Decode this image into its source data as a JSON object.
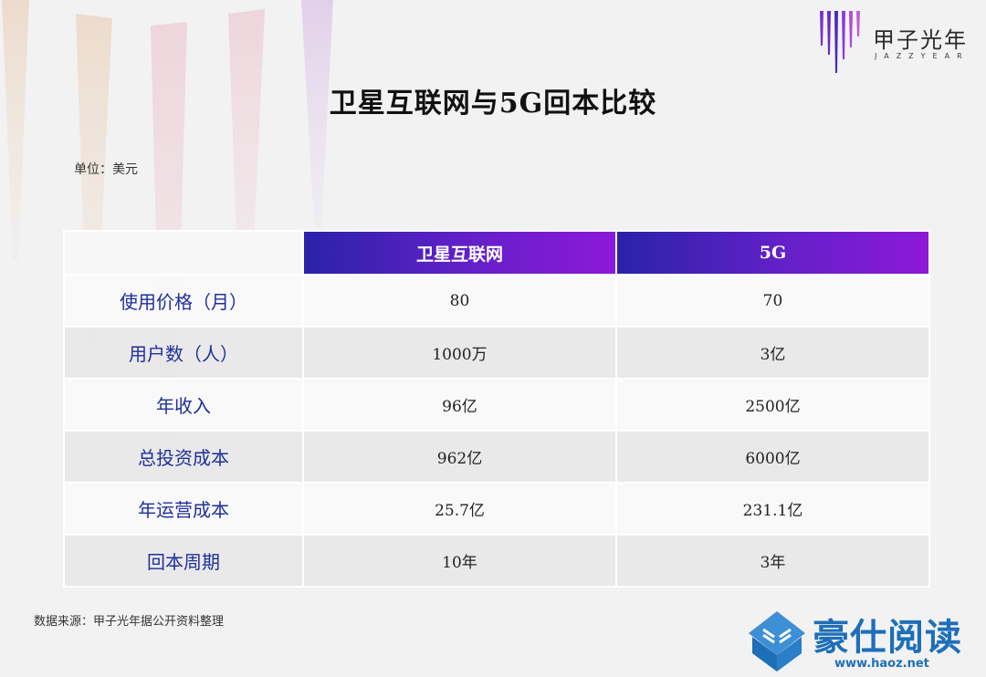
{
  "brand": {
    "name": "甲子光年",
    "sub": "JAZZYEAR"
  },
  "title": "卫星互联网与5G回本比较",
  "unit": "单位：美元",
  "table": {
    "columns": [
      "",
      "卫星互联网",
      "5G"
    ],
    "rows": [
      {
        "label": "使用价格（月）",
        "cells": [
          "80",
          "70"
        ]
      },
      {
        "label": "用户数（人）",
        "cells": [
          "1000万",
          "3亿"
        ]
      },
      {
        "label": "年收入",
        "cells": [
          "96亿",
          "2500亿"
        ]
      },
      {
        "label": "总投资成本",
        "cells": [
          "962亿",
          "6000亿"
        ]
      },
      {
        "label": "年运营成本",
        "cells": [
          "25.7亿",
          "231.1亿"
        ]
      },
      {
        "label": "回本周期",
        "cells": [
          "10年",
          "3年"
        ]
      }
    ]
  },
  "source": "数据来源：甲子光年据公开资料整理",
  "watermark": {
    "text": "豪仕阅读",
    "url": "www.haoz.net",
    "icon": "open-book-icon"
  },
  "colors": {
    "header_gradient_start": "#2a22a8",
    "header_gradient_end": "#8d18d8",
    "row_label": "#1f2f9a",
    "watermark": "#1d6fb8"
  }
}
